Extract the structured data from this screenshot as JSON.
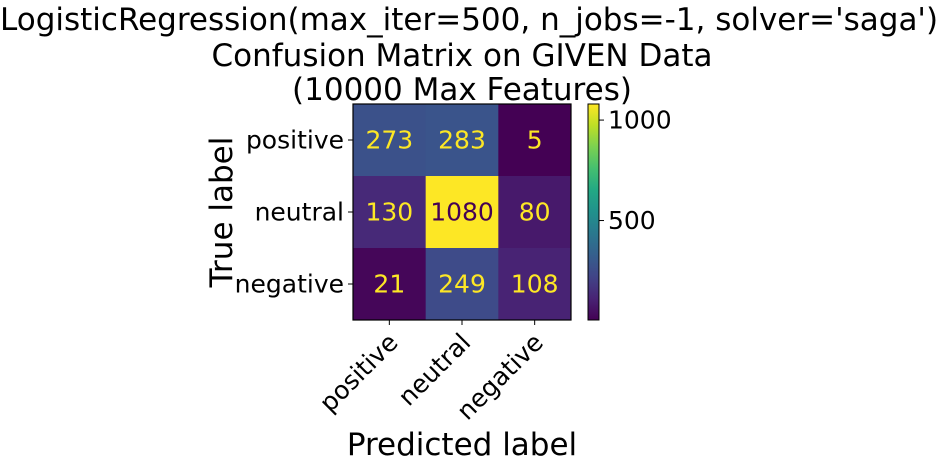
{
  "title_lines": [
    "LogisticRegression(max_iter=500, n_jobs=-1, solver='saga')",
    "Confusion Matrix on GIVEN Data",
    "(10000 Max Features)"
  ],
  "chart_data": {
    "type": "heatmap",
    "title": "LogisticRegression(max_iter=500, n_jobs=-1, solver='saga')\nConfusion Matrix on GIVEN Data\n(10000 Max Features)",
    "xlabel": "Predicted label",
    "ylabel": "True label",
    "x_categories": [
      "positive",
      "neutral",
      "negative"
    ],
    "y_categories": [
      "positive",
      "neutral",
      "negative"
    ],
    "matrix": [
      [
        273,
        283,
        5
      ],
      [
        130,
        1080,
        80
      ],
      [
        21,
        249,
        108
      ]
    ],
    "colormap": "viridis",
    "colorbar_ticks": [
      500,
      1000
    ],
    "colorbar_range": [
      5,
      1080
    ],
    "grid": false
  }
}
